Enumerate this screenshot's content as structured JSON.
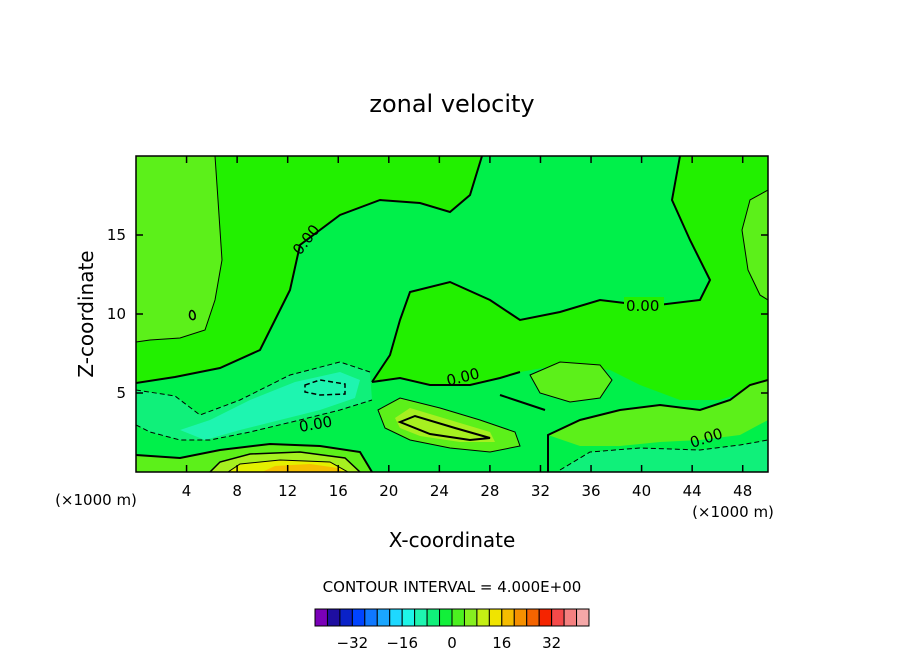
{
  "chart_data": {
    "type": "contour",
    "title": "zonal velocity",
    "xlabel": "X-coordinate",
    "ylabel": "Z-coordinate",
    "x_unit_note": "(×1000 m)",
    "y_unit_note": "(×1000 m)",
    "xlim": [
      0,
      50
    ],
    "ylim": [
      0,
      20
    ],
    "x_ticks": [
      4,
      8,
      12,
      16,
      20,
      24,
      28,
      32,
      36,
      40,
      44,
      48
    ],
    "y_ticks": [
      5,
      10,
      15
    ],
    "contour_interval_text": "CONTOUR INTERVAL = 4.000E+00",
    "contour_labels": [
      {
        "text": "0.00",
        "x": 14,
        "z": 14.8
      },
      {
        "text": "0.00",
        "x": 40,
        "z": 10.4
      },
      {
        "text": "0.00",
        "x": 26.5,
        "z": 5.9
      },
      {
        "text": "0.00",
        "x": 14.3,
        "z": 3.0
      },
      {
        "text": "0.00",
        "x": 45.5,
        "z": 2.0
      }
    ],
    "colorbar": {
      "colors": [
        "#7a00b8",
        "#1e0ea0",
        "#0a22c8",
        "#0044ff",
        "#0f78ff",
        "#1aa6ff",
        "#1ed8ff",
        "#1ef5e8",
        "#1ef5b0",
        "#10f07a",
        "#12f03a",
        "#4cf020",
        "#86f020",
        "#c4f014",
        "#f0e400",
        "#f5bc00",
        "#f59000",
        "#f56400",
        "#f52400",
        "#f54a4a",
        "#f58080",
        "#f5a8a8"
      ],
      "tick_labels": [
        "-32",
        "-16",
        "0",
        "16",
        "32"
      ],
      "tick_values": [
        -32,
        -16,
        0,
        16,
        32
      ],
      "min": -44,
      "max": 44
    },
    "field_colors": {
      "strong_negative": "#1ef5b0",
      "negative": "#10f07a",
      "near_zero_negative": "#00f04a",
      "near_zero_positive": "#22f000",
      "positive": "#5cf01a",
      "moderate_positive": "#a6f020",
      "high_positive": "#e4f000",
      "peak_positive": "#f5c000"
    }
  }
}
